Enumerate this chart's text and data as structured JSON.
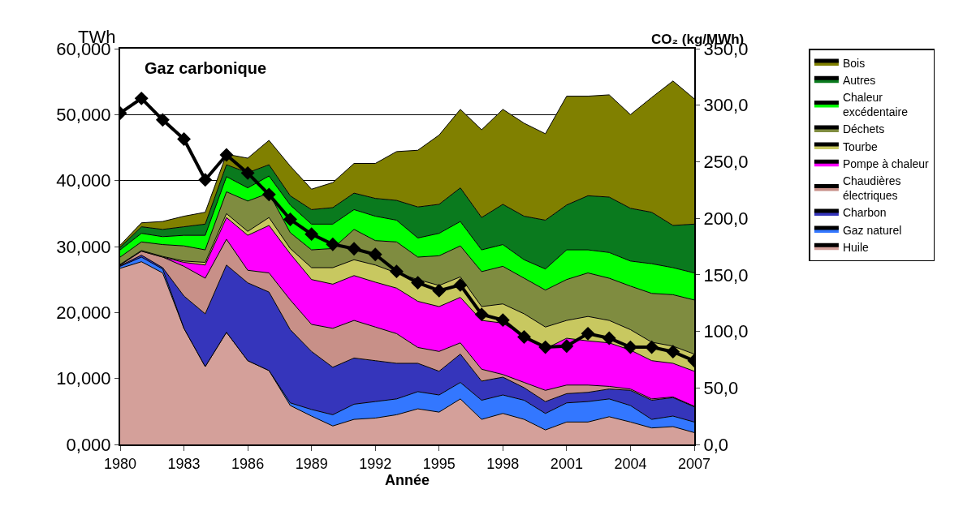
{
  "chart_data": {
    "type": "area",
    "stacked": true,
    "xlabel": "Année",
    "ylabel": "TWh",
    "y2label": "CO₂ (kg/MWh)",
    "x": [
      1980,
      1981,
      1982,
      1983,
      1984,
      1985,
      1986,
      1987,
      1988,
      1989,
      1990,
      1991,
      1992,
      1993,
      1994,
      1995,
      1996,
      1997,
      1998,
      1999,
      2000,
      2001,
      2002,
      2003,
      2004,
      2005,
      2006,
      2007
    ],
    "xlim": [
      1980,
      2007
    ],
    "xticks": [
      1980,
      1983,
      1986,
      1989,
      1992,
      1995,
      1998,
      2001,
      2004,
      2007
    ],
    "ylim": [
      0,
      60
    ],
    "yticks": [
      {
        "value": 0,
        "label": "0,000"
      },
      {
        "value": 10,
        "label": "10,000"
      },
      {
        "value": 20,
        "label": "20,000"
      },
      {
        "value": 30,
        "label": "30,000"
      },
      {
        "value": 40,
        "label": "40,000"
      },
      {
        "value": 50,
        "label": "50,000"
      },
      {
        "value": 60,
        "label": "60,000"
      }
    ],
    "y2lim": [
      0,
      350
    ],
    "y2ticks": [
      {
        "value": 0,
        "label": "0,0"
      },
      {
        "value": 50,
        "label": "50,0"
      },
      {
        "value": 100,
        "label": "100,0"
      },
      {
        "value": 150,
        "label": "150,0"
      },
      {
        "value": 200,
        "label": "200,0"
      },
      {
        "value": 250,
        "label": "250,0"
      },
      {
        "value": 300,
        "label": "300,0"
      },
      {
        "value": 350,
        "label": "350,0"
      }
    ],
    "grid": "y",
    "legend": "right",
    "line_style": "solid",
    "series": [
      {
        "name": "Huile",
        "color": "#d4a09a",
        "values": [
          26.7,
          27.7,
          26.0,
          17.6,
          11.8,
          17.0,
          12.7,
          11.2,
          5.9,
          4.3,
          2.8,
          3.8,
          4.0,
          4.5,
          5.4,
          4.9,
          6.9,
          3.8,
          4.7,
          3.8,
          2.2,
          3.4,
          3.4,
          4.2,
          3.4,
          2.5,
          2.7,
          1.8
        ]
      },
      {
        "name": "Gaz naturel",
        "color": "#3377ff",
        "values": [
          0.3,
          0.7,
          0.6,
          0,
          0,
          0,
          0,
          0,
          0.4,
          1.0,
          1.7,
          2.3,
          2.5,
          2.4,
          2.6,
          2.6,
          2.5,
          2.9,
          2.8,
          2.9,
          2.5,
          2.9,
          3.1,
          2.7,
          2.5,
          1.3,
          1.6,
          1.6
        ]
      },
      {
        "name": "Charbon",
        "color": "#3535bb",
        "values": [
          0.1,
          0.3,
          0.2,
          4.9,
          8.0,
          10.2,
          11.8,
          11.9,
          11.1,
          8.8,
          7.2,
          7.0,
          6.2,
          5.4,
          4.3,
          3.6,
          4.3,
          2.9,
          2.7,
          1.9,
          1.8,
          1.4,
          1.4,
          1.5,
          2.3,
          2.9,
          2.8,
          2.3
        ]
      },
      {
        "name": "Chaudières électriques",
        "color": "#c89088",
        "values": [
          0.1,
          0.6,
          1.6,
          4.5,
          5.4,
          3.9,
          1.9,
          2.9,
          4.5,
          4.1,
          5.9,
          5.7,
          5.1,
          4.5,
          2.4,
          3.0,
          1.7,
          1.8,
          0.4,
          0.8,
          1.7,
          1.3,
          1.1,
          0.4,
          0.2,
          0.2,
          0.1,
          0.1
        ]
      },
      {
        "name": "Pompe à chaleur",
        "color": "#ff00ff",
        "values": [
          0,
          0,
          0,
          0.6,
          2.0,
          3.3,
          5.3,
          7.2,
          7.0,
          6.8,
          6.7,
          6.8,
          6.8,
          6.9,
          7.0,
          6.8,
          6.9,
          7.4,
          7.8,
          7.0,
          6.3,
          7.1,
          6.7,
          6.6,
          5.9,
          5.8,
          5.1,
          5.3
        ]
      },
      {
        "name": "Tourbe",
        "color": "#c8c860",
        "values": [
          0.1,
          0.1,
          0.1,
          0.2,
          0.4,
          0.6,
          0.6,
          1.2,
          0.8,
          1.8,
          2.5,
          2.4,
          2.6,
          2.3,
          3.3,
          3.2,
          3.1,
          2.1,
          2.9,
          3.4,
          3.3,
          2.7,
          3.7,
          3.4,
          3.1,
          2.8,
          2.6,
          2.6
        ]
      },
      {
        "name": "Déchets",
        "color": "#7f8c40",
        "values": [
          1.1,
          1.3,
          1.8,
          2.3,
          1.9,
          3.3,
          4.6,
          3.7,
          2.4,
          2.7,
          2.9,
          4.6,
          3.7,
          4.7,
          3.4,
          4.5,
          4.7,
          5.3,
          5.7,
          5.4,
          5.6,
          6.2,
          6.6,
          6.4,
          6.6,
          7.4,
          7.8,
          8.2
        ]
      },
      {
        "name": "Chaleur excédentaire",
        "color": "#00ff00",
        "values": [
          1.1,
          1.3,
          1.2,
          1.6,
          2.2,
          2.3,
          2.0,
          2.6,
          4.2,
          3.9,
          3.7,
          3.0,
          3.7,
          3.3,
          2.9,
          3.4,
          3.7,
          3.3,
          3.3,
          2.8,
          3.2,
          4.5,
          3.5,
          3.9,
          3.8,
          4.5,
          4.1,
          4.1
        ]
      },
      {
        "name": "Autres",
        "color": "#0a7a1e",
        "values": [
          0.4,
          1.0,
          1.1,
          1.3,
          1.7,
          1.8,
          2.3,
          1.7,
          1.4,
          2.2,
          2.5,
          2.5,
          2.7,
          3.0,
          4.7,
          4.4,
          5.1,
          4.9,
          6.1,
          6.6,
          7.4,
          6.8,
          8.2,
          8.4,
          8.0,
          7.8,
          6.4,
          7.4
        ]
      },
      {
        "name": "Bois",
        "color": "#808000",
        "values": [
          0.3,
          0.6,
          1.2,
          1.6,
          1.8,
          1.6,
          2.2,
          3.7,
          4.5,
          3.1,
          3.8,
          4.5,
          5.3,
          7.4,
          8.6,
          10.5,
          11.9,
          13.3,
          14.4,
          14.1,
          13.1,
          16.5,
          15.1,
          15.5,
          14.2,
          17.4,
          21.9,
          19.0
        ]
      },
      {
        "name": "Gaz carbonique",
        "type": "line",
        "axis": "y2",
        "marker": "diamond",
        "color": "#000000",
        "values": [
          293,
          306,
          287,
          270,
          234,
          256,
          240,
          221,
          199,
          186,
          177,
          173,
          168,
          153,
          143,
          136,
          141,
          115,
          110,
          95,
          86,
          87,
          98,
          94,
          86,
          86,
          82,
          74
        ]
      }
    ]
  }
}
